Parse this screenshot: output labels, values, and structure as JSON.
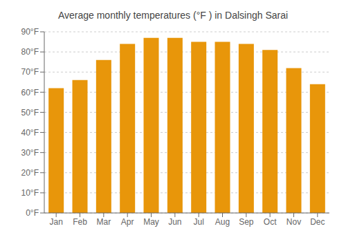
{
  "chart_data": {
    "type": "bar",
    "title": "Average monthly temperatures (°F ) in Dalsingh Sarai",
    "categories": [
      "Jan",
      "Feb",
      "Mar",
      "Apr",
      "May",
      "Jun",
      "Jul",
      "Aug",
      "Sep",
      "Oct",
      "Nov",
      "Dec"
    ],
    "values": [
      62,
      66,
      76,
      84,
      87,
      87,
      85,
      85,
      84,
      81,
      72,
      64
    ],
    "color": "#E8960A",
    "ylim": [
      0,
      90
    ],
    "yticks": [
      {
        "value": 0,
        "label": "0°F"
      },
      {
        "value": 10,
        "label": "10°F"
      },
      {
        "value": 20,
        "label": "20°F"
      },
      {
        "value": 30,
        "label": "30°F"
      },
      {
        "value": 40,
        "label": "40°F"
      },
      {
        "value": 50,
        "label": "50°F"
      },
      {
        "value": 60,
        "label": "60°F"
      },
      {
        "value": 70,
        "label": "70°F"
      },
      {
        "value": 80,
        "label": "80°F"
      },
      {
        "value": 90,
        "label": "90°F"
      }
    ],
    "grid": true
  }
}
